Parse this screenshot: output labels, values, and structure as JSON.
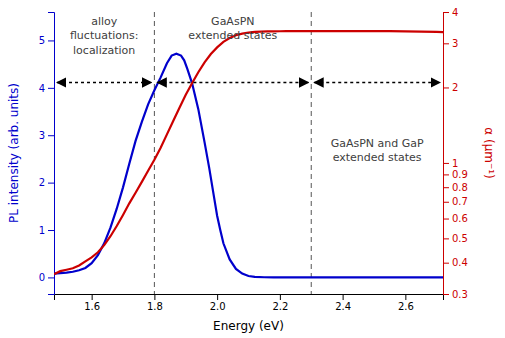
{
  "chart_data": {
    "type": "line",
    "xlabel": "Energy (eV)",
    "ylabel": "PL intensity (arb. units)",
    "y2label": "α (μm⁻¹)",
    "xlim": [
      1.48,
      2.72
    ],
    "xticks": [
      1.6,
      1.8,
      {
        "value": 2.0,
        "label": "2.0"
      },
      2.2,
      2.4,
      2.6
    ],
    "ylim": [
      -0.35,
      5.6
    ],
    "yticks": [
      0,
      1,
      2,
      3,
      4,
      5
    ],
    "y2lim": [
      0.3,
      4.0
    ],
    "y2ticks": [
      0.3,
      0.4,
      0.5,
      0.6,
      0.7,
      0.8,
      0.9,
      1,
      2,
      3,
      4
    ],
    "log": "y2",
    "grid": false,
    "vlines": [
      1.8,
      2.3
    ],
    "annotations": [
      {
        "text": "alloy\nfluctuations:\nlocalization",
        "color": "#404040"
      },
      {
        "text": "GaAsPN\nextended states",
        "color": "#404040"
      },
      {
        "text": "GaAsPN and GaP\nextended states",
        "color": "#404040"
      }
    ],
    "series": [
      {
        "color": "#0000cc",
        "x": [
          1.48,
          1.5,
          1.52,
          1.54,
          1.56,
          1.58,
          1.6,
          1.62,
          1.64,
          1.66,
          1.68,
          1.7,
          1.72,
          1.74,
          1.76,
          1.78,
          1.8,
          1.82,
          1.84,
          1.855,
          1.87,
          1.885,
          1.895,
          1.905,
          1.92,
          1.94,
          1.96,
          1.975,
          1.99,
          2.0,
          2.01,
          2.02,
          2.04,
          2.06,
          2.08,
          2.1,
          2.12,
          2.15,
          2.18,
          2.22,
          2.26,
          2.3,
          2.35,
          2.4,
          2.5,
          2.6,
          2.72
        ],
        "values": [
          0.08,
          0.09,
          0.1,
          0.12,
          0.15,
          0.2,
          0.3,
          0.47,
          0.72,
          1.05,
          1.45,
          1.9,
          2.4,
          2.88,
          3.28,
          3.65,
          3.95,
          4.22,
          4.52,
          4.68,
          4.72,
          4.68,
          4.58,
          4.4,
          4.1,
          3.55,
          2.85,
          2.3,
          1.7,
          1.3,
          1.0,
          0.72,
          0.38,
          0.18,
          0.08,
          0.03,
          0.01,
          0.003,
          0.001,
          0.0,
          0.0,
          0.0,
          0.0,
          0.0,
          0.0,
          0.0,
          0.0
        ]
      },
      {
        "color": "#cc0000",
        "axis": "y2",
        "x": [
          1.48,
          1.5,
          1.52,
          1.54,
          1.56,
          1.58,
          1.6,
          1.62,
          1.64,
          1.66,
          1.68,
          1.7,
          1.72,
          1.74,
          1.76,
          1.78,
          1.8,
          1.82,
          1.84,
          1.86,
          1.88,
          1.9,
          1.92,
          1.94,
          1.96,
          1.98,
          2.0,
          2.02,
          2.04,
          2.06,
          2.08,
          2.1,
          2.12,
          2.14,
          2.16,
          2.18,
          2.2,
          2.22,
          2.24,
          2.26,
          2.28,
          2.3,
          2.35,
          2.4,
          2.45,
          2.5,
          2.55,
          2.6,
          2.65,
          2.7,
          2.72
        ],
        "values": [
          0.36,
          0.37,
          0.375,
          0.38,
          0.39,
          0.405,
          0.42,
          0.44,
          0.47,
          0.51,
          0.56,
          0.62,
          0.69,
          0.76,
          0.84,
          0.93,
          1.03,
          1.15,
          1.3,
          1.47,
          1.66,
          1.87,
          2.08,
          2.3,
          2.52,
          2.72,
          2.89,
          3.04,
          3.15,
          3.23,
          3.28,
          3.31,
          3.33,
          3.34,
          3.345,
          3.35,
          3.352,
          3.354,
          3.355,
          3.356,
          3.357,
          3.358,
          3.358,
          3.358,
          3.358,
          3.356,
          3.353,
          3.348,
          3.34,
          3.33,
          3.325
        ]
      }
    ]
  }
}
